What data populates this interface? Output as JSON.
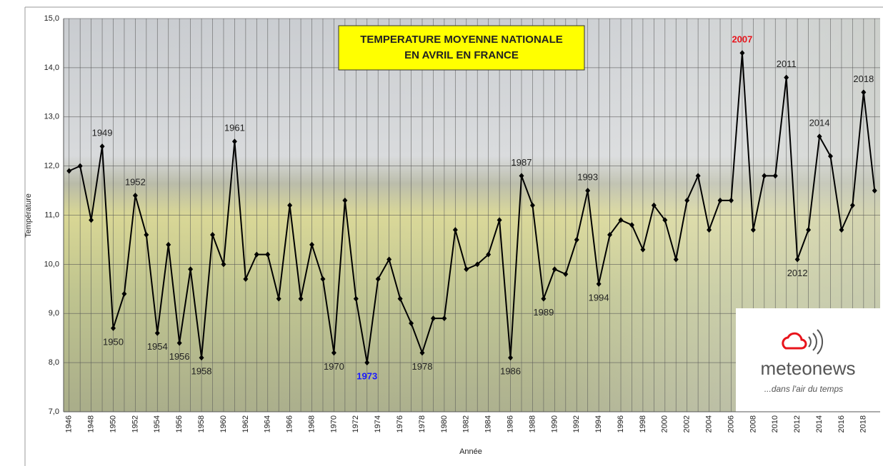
{
  "chart_data": {
    "type": "line",
    "title": [
      "TEMPERATURE MOYENNE NATIONALE",
      "EN AVRIL EN FRANCE"
    ],
    "xlabel": "Année",
    "ylabel": "Température",
    "x": [
      1946,
      1947,
      1948,
      1949,
      1950,
      1951,
      1952,
      1953,
      1954,
      1955,
      1956,
      1957,
      1958,
      1959,
      1960,
      1961,
      1962,
      1963,
      1964,
      1965,
      1966,
      1967,
      1968,
      1969,
      1970,
      1971,
      1972,
      1973,
      1974,
      1975,
      1976,
      1977,
      1978,
      1979,
      1980,
      1981,
      1982,
      1983,
      1984,
      1985,
      1986,
      1987,
      1988,
      1989,
      1990,
      1991,
      1992,
      1993,
      1994,
      1995,
      1996,
      1997,
      1998,
      1999,
      2000,
      2001,
      2002,
      2003,
      2004,
      2005,
      2006,
      2007,
      2008,
      2009,
      2010,
      2011,
      2012,
      2013,
      2014,
      2015,
      2016,
      2017,
      2018,
      2019
    ],
    "series": [
      {
        "color": "#000000",
        "values": [
          11.9,
          12.0,
          10.9,
          12.4,
          8.7,
          9.4,
          11.4,
          10.6,
          8.6,
          10.4,
          8.4,
          9.9,
          8.1,
          10.6,
          10.0,
          12.5,
          9.7,
          10.2,
          10.2,
          9.3,
          11.2,
          9.3,
          10.4,
          9.7,
          8.2,
          11.3,
          9.3,
          8.0,
          9.7,
          10.1,
          9.3,
          8.8,
          8.2,
          8.9,
          8.9,
          10.7,
          9.9,
          10.0,
          10.2,
          10.9,
          8.1,
          11.8,
          11.2,
          9.3,
          9.9,
          9.8,
          10.5,
          11.5,
          9.6,
          10.6,
          10.9,
          10.8,
          10.3,
          11.2,
          10.9,
          10.1,
          11.3,
          11.8,
          10.7,
          11.3,
          11.3,
          14.3,
          10.7,
          11.8,
          11.8,
          13.8,
          10.1,
          10.7,
          12.6,
          12.2,
          10.7,
          11.2,
          13.5,
          11.5
        ]
      }
    ],
    "xlim": [
      1945.5,
      2019.5
    ],
    "xticks": [
      1946,
      1948,
      1950,
      1952,
      1954,
      1956,
      1958,
      1960,
      1962,
      1964,
      1966,
      1968,
      1970,
      1972,
      1974,
      1976,
      1978,
      1980,
      1982,
      1984,
      1986,
      1988,
      1990,
      1992,
      1994,
      1996,
      1998,
      2000,
      2002,
      2004,
      2006,
      2008,
      2010,
      2012,
      2014,
      2016,
      2018
    ],
    "ylim": [
      7,
      15
    ],
    "yticks": [
      {
        "value": 7,
        "label": "7,0"
      },
      {
        "value": 8,
        "label": "8,0"
      },
      {
        "value": 9,
        "label": "9,0"
      },
      {
        "value": 10,
        "label": "10,0"
      },
      {
        "value": 11,
        "label": "11,0"
      },
      {
        "value": 12,
        "label": "12,0"
      },
      {
        "value": 13,
        "label": "13,0"
      },
      {
        "value": 14,
        "label": "14,0"
      },
      {
        "value": 15,
        "label": "15,0"
      }
    ],
    "grid": true,
    "annotations": [
      {
        "text": "1949",
        "x": 1949
      },
      {
        "text": "1950",
        "x": 1950
      },
      {
        "text": "1952",
        "x": 1952
      },
      {
        "text": "1954",
        "x": 1954
      },
      {
        "text": "1956",
        "x": 1956
      },
      {
        "text": "1958",
        "x": 1958
      },
      {
        "text": "1961",
        "x": 1961
      },
      {
        "text": "1970",
        "x": 1970
      },
      {
        "text": "1973",
        "x": 1973,
        "color": "#1a1aff"
      },
      {
        "text": "1978",
        "x": 1978
      },
      {
        "text": "1986",
        "x": 1986
      },
      {
        "text": "1987",
        "x": 1987
      },
      {
        "text": "1989",
        "x": 1989
      },
      {
        "text": "1993",
        "x": 1993
      },
      {
        "text": "1994",
        "x": 1994
      },
      {
        "text": "2007",
        "x": 2007,
        "color": "#e8141c"
      },
      {
        "text": "2011",
        "x": 2011
      },
      {
        "text": "2012",
        "x": 2012
      },
      {
        "text": "2014",
        "x": 2014
      },
      {
        "text": "2018",
        "x": 2018
      }
    ]
  },
  "logo": {
    "name": "meteonews",
    "tagline": "...dans l'air du temps"
  }
}
